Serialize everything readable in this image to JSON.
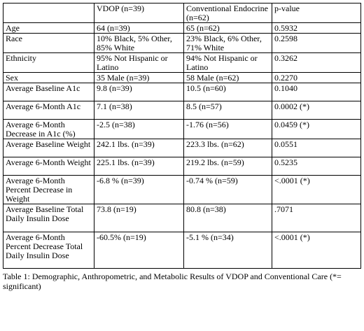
{
  "table": {
    "header": [
      "",
      "VDOP (n=39)",
      "Conventional Endocrine (n=62)",
      "p-value"
    ],
    "rows": [
      [
        "Age",
        "64 (n=39)",
        "65 (n=62)",
        "0.5932"
      ],
      [
        "Race",
        "10% Black, 5% Other, 85% White",
        "23% Black, 6% Other, 71% White",
        "0.2598"
      ],
      [
        "Ethnicity",
        "95% Not Hispanic or Latino",
        "94% Not Hispanic or Latino",
        "0.3262"
      ],
      [
        "Sex",
        "35 Male (n=39)",
        "58 Male (n=62)",
        "0.2270"
      ],
      [
        "Average Baseline A1c",
        "9.8 (n=39)",
        "10.5 (n=60)",
        "0.1040"
      ],
      [
        "Average 6-Month A1c",
        "7.1 (n=38)",
        "8.5 (n=57)",
        "0.0002 (*)"
      ],
      [
        "Average 6-Month Decrease in A1c (%)",
        "-2.5 (n=38)",
        "-1.76 (n=56)",
        "0.0459 (*)"
      ],
      [
        "Average Baseline Weight",
        "242.1 lbs. (n=39)",
        "223.3 lbs. (n=62)",
        "0.0551"
      ],
      [
        "Average 6-Month Weight",
        "225.1 lbs. (n=39)",
        "219.2 lbs. (n=59)",
        "0.5235"
      ],
      [
        "Average 6-Month Percent Decrease in Weight",
        "-6.8 % (n=39)",
        "-0.74 % (n=59)",
        "<.0001 (*)"
      ],
      [
        "Average Baseline Total Daily Insulin Dose",
        "73.8 (n=19)",
        "80.8 (n=38)",
        ".7071"
      ],
      [
        "Average 6-Month Percent Decrease Total Daily Insulin Dose",
        "-60.5% (n=19)",
        "-5.1 % (n=34)",
        "<.0001 (*)"
      ]
    ]
  },
  "caption": "Table 1: Demographic, Anthropometric, and Metabolic Results of VDOP and Conventional Care (*= significant)"
}
